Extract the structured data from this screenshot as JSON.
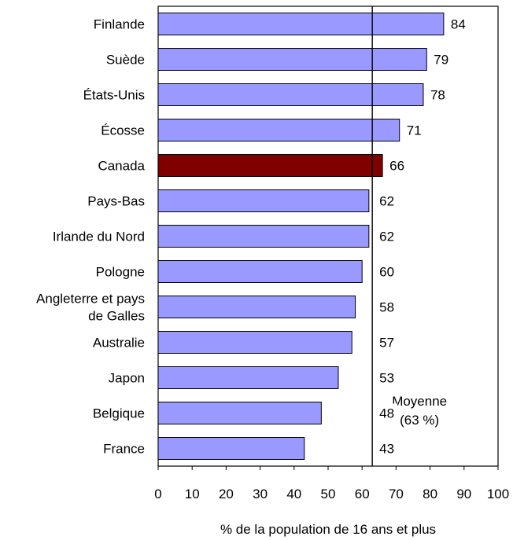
{
  "chart_data": {
    "type": "bar",
    "orientation": "horizontal",
    "categories": [
      [
        "Finlande"
      ],
      [
        "Suède"
      ],
      [
        "États-Unis"
      ],
      [
        "Écosse"
      ],
      [
        "Canada"
      ],
      [
        "Pays-Bas"
      ],
      [
        "Irlande du Nord"
      ],
      [
        "Pologne"
      ],
      [
        "Angleterre et pays",
        "de Galles"
      ],
      [
        "Australie"
      ],
      [
        "Japon"
      ],
      [
        "Belgique"
      ],
      [
        "France"
      ]
    ],
    "values": [
      84,
      79,
      78,
      71,
      66,
      62,
      62,
      60,
      58,
      57,
      53,
      48,
      43
    ],
    "value_labels": [
      "84",
      "79",
      "78",
      "71",
      "66",
      "62",
      "62",
      "60",
      "58",
      "57",
      "53",
      "48",
      "43"
    ],
    "highlight_index": 4,
    "xlim": [
      0,
      100
    ],
    "xticks": [
      "0",
      "10",
      "20",
      "30",
      "40",
      "50",
      "60",
      "70",
      "80",
      "90",
      "100"
    ],
    "xlabel": "% de la population de 16 ans et plus",
    "reference_line": {
      "value": 63,
      "label": [
        "Moyenne",
        "(63 %)"
      ]
    },
    "colors": {
      "bar": "#9999ff",
      "highlight": "#800000",
      "outline": "#000000"
    },
    "grid": false
  }
}
